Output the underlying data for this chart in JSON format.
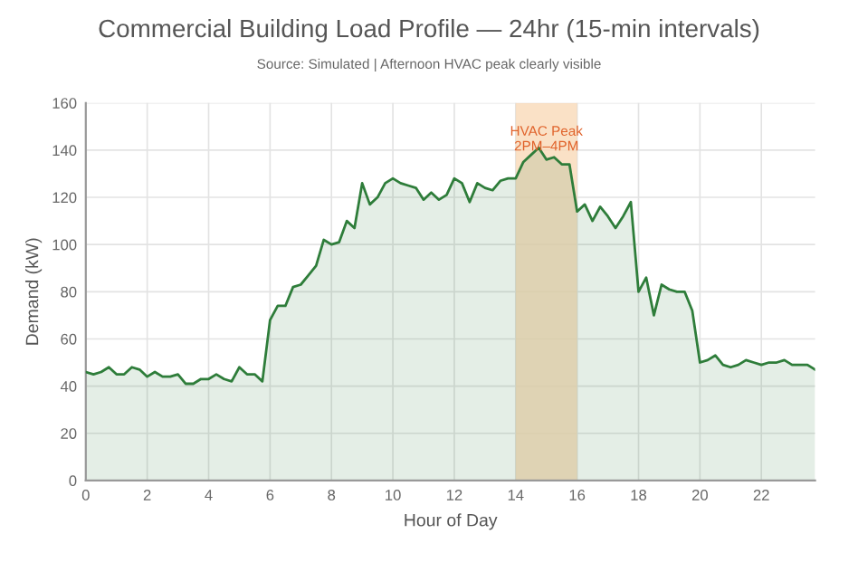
{
  "chart_data": {
    "type": "area",
    "title": "Commercial Building Load Profile — 24hr (15-min intervals)",
    "subtitle": "Source: Simulated | Afternoon HVAC peak clearly visible",
    "xlabel": "Hour of Day",
    "ylabel": "Demand (kW)",
    "x": [
      0,
      0.25,
      0.5,
      0.75,
      1,
      1.25,
      1.5,
      1.75,
      2,
      2.25,
      2.5,
      2.75,
      3,
      3.25,
      3.5,
      3.75,
      4,
      4.25,
      4.5,
      4.75,
      5,
      5.25,
      5.5,
      5.75,
      6,
      6.25,
      6.5,
      6.75,
      7,
      7.25,
      7.5,
      7.75,
      8,
      8.25,
      8.5,
      8.75,
      9,
      9.25,
      9.5,
      9.75,
      10,
      10.25,
      10.5,
      10.75,
      11,
      11.25,
      11.5,
      11.75,
      12,
      12.25,
      12.5,
      12.75,
      13,
      13.25,
      13.5,
      13.75,
      14,
      14.25,
      14.5,
      14.75,
      15,
      15.25,
      15.5,
      15.75,
      16,
      16.25,
      16.5,
      16.75,
      17,
      17.25,
      17.5,
      17.75,
      18,
      18.25,
      18.5,
      18.75,
      19,
      19.25,
      19.5,
      19.75,
      20,
      20.25,
      20.5,
      20.75,
      21,
      21.25,
      21.5,
      21.75,
      22,
      22.25,
      22.5,
      22.75,
      23,
      23.25,
      23.5,
      23.75
    ],
    "series": [
      {
        "color": "#2e7d3a",
        "values": [
          46,
          45,
          46,
          48,
          45,
          45,
          48,
          47,
          44,
          46,
          44,
          44,
          45,
          41,
          41,
          43,
          43,
          45,
          43,
          42,
          48,
          45,
          45,
          42,
          68,
          74,
          74,
          82,
          83,
          87,
          91,
          102,
          100,
          101,
          110,
          107,
          126,
          117,
          120,
          126,
          128,
          126,
          125,
          124,
          119,
          122,
          119,
          121,
          128,
          126,
          118,
          126,
          124,
          123,
          127,
          128,
          128,
          135,
          138,
          141,
          136,
          137,
          134,
          134,
          114,
          117,
          110,
          116,
          112,
          107,
          112,
          118,
          80,
          86,
          70,
          83,
          81,
          80,
          80,
          72,
          50,
          51,
          53,
          49,
          48,
          49,
          51,
          50,
          49,
          50,
          50,
          51,
          49,
          49,
          49,
          47
        ]
      }
    ],
    "xlim": [
      0,
      23.75
    ],
    "ylim": [
      0,
      160
    ],
    "xticks": [
      0,
      2,
      4,
      6,
      8,
      10,
      12,
      14,
      16,
      18,
      20,
      22
    ],
    "yticks": [
      0,
      20,
      40,
      60,
      80,
      100,
      120,
      140,
      160
    ],
    "bands": [
      {
        "axis": "x",
        "from": 14,
        "to": 16,
        "label": "HVAC Peak\n2PM–4PM",
        "color": "#f9d9b8"
      }
    ],
    "grid": true,
    "legend": false
  }
}
